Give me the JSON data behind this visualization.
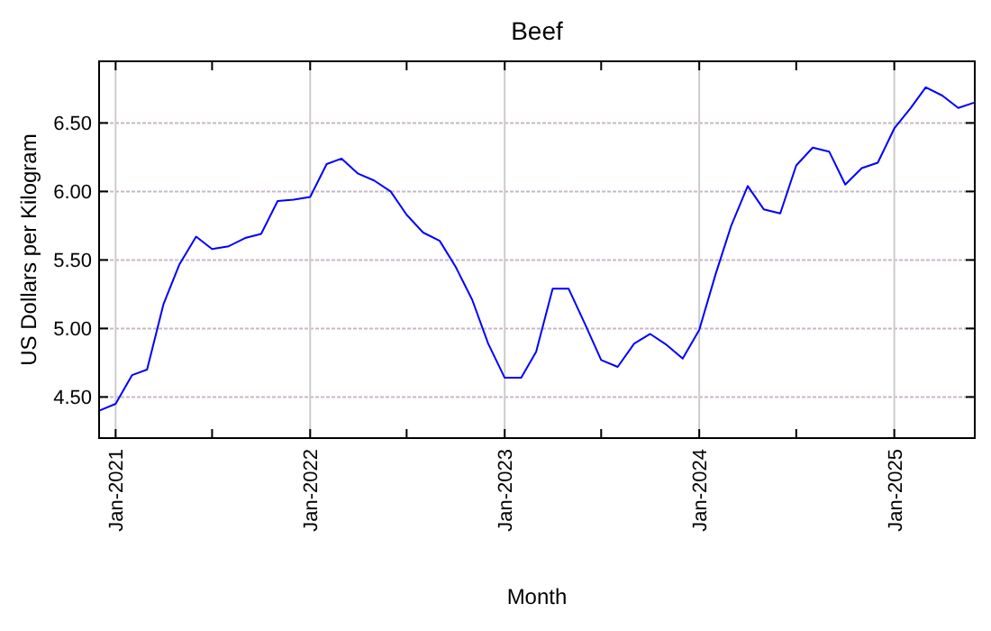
{
  "chart_data": {
    "type": "line",
    "title": "Beef",
    "xlabel": "Month",
    "ylabel": "US Dollars per Kilogram",
    "x": [
      "2020-12",
      "2021-01",
      "2021-02",
      "2021-03",
      "2021-04",
      "2021-05",
      "2021-06",
      "2021-07",
      "2021-08",
      "2021-09",
      "2021-10",
      "2021-11",
      "2021-12",
      "2022-01",
      "2022-02",
      "2022-03",
      "2022-04",
      "2022-05",
      "2022-06",
      "2022-07",
      "2022-08",
      "2022-09",
      "2022-10",
      "2022-11",
      "2022-12",
      "2023-01",
      "2023-02",
      "2023-03",
      "2023-04",
      "2023-05",
      "2023-06",
      "2023-07",
      "2023-08",
      "2023-09",
      "2023-10",
      "2023-11",
      "2023-12",
      "2024-01",
      "2024-02",
      "2024-03",
      "2024-04",
      "2024-05",
      "2024-06",
      "2024-07",
      "2024-08",
      "2024-09",
      "2024-10",
      "2024-11",
      "2024-12",
      "2025-01",
      "2025-02",
      "2025-03",
      "2025-04",
      "2025-05",
      "2025-06"
    ],
    "series": [
      {
        "color": "#0000ff",
        "values": [
          4.4,
          4.45,
          4.66,
          4.7,
          5.18,
          5.47,
          5.67,
          5.58,
          5.6,
          5.66,
          5.69,
          5.93,
          5.94,
          5.96,
          6.2,
          6.24,
          6.13,
          6.08,
          6.0,
          5.83,
          5.7,
          5.64,
          5.45,
          5.21,
          4.89,
          4.64,
          4.64,
          4.83,
          5.29,
          5.29,
          5.03,
          4.77,
          4.72,
          4.89,
          4.96,
          4.88,
          4.78,
          4.99,
          5.4,
          5.75,
          6.04,
          5.87,
          5.84,
          6.19,
          6.32,
          6.29,
          6.05,
          6.17,
          6.21,
          6.46,
          6.61,
          6.76,
          6.7,
          6.61,
          6.65
        ]
      }
    ],
    "xlim": [
      "2020-12",
      "2025-06"
    ],
    "xticks": [
      {
        "value": "2021-01",
        "label": "Jan-2021"
      },
      {
        "value": "2021-07",
        "label": null
      },
      {
        "value": "2022-01",
        "label": "Jan-2022"
      },
      {
        "value": "2022-07",
        "label": null
      },
      {
        "value": "2023-01",
        "label": "Jan-2023"
      },
      {
        "value": "2023-07",
        "label": null
      },
      {
        "value": "2024-01",
        "label": "Jan-2024"
      },
      {
        "value": "2024-07",
        "label": null
      },
      {
        "value": "2025-01",
        "label": "Jan-2025"
      }
    ],
    "ylim": [
      4.2,
      6.95
    ],
    "yticks": [
      {
        "value": 4.5,
        "label": "4.50"
      },
      {
        "value": 5,
        "label": "5.00"
      },
      {
        "value": 5.5,
        "label": "5.50"
      },
      {
        "value": 6,
        "label": "6.00"
      },
      {
        "value": 6.5,
        "label": "6.50"
      }
    ],
    "grid": true,
    "marker": "none",
    "line_style": "solid"
  }
}
